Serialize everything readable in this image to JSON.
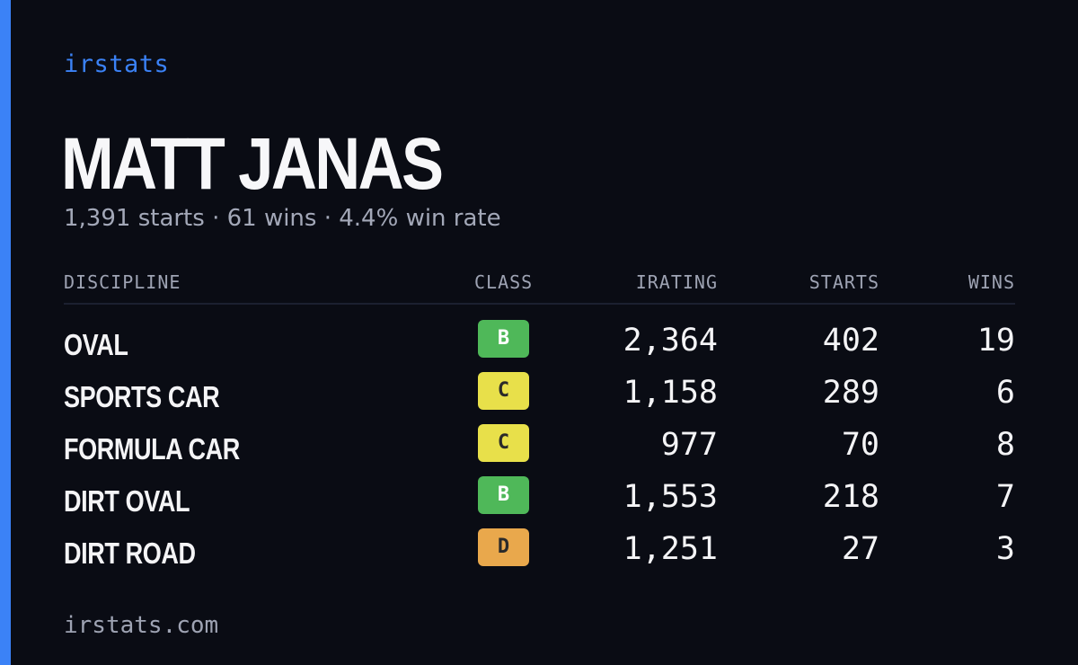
{
  "brand": "irstats",
  "driver": {
    "name": "MATT JANAS",
    "summary": "1,391 starts · 61 wins · 4.4% win rate"
  },
  "table": {
    "headers": {
      "discipline": "DISCIPLINE",
      "class": "CLASS",
      "irating": "IRATING",
      "starts": "STARTS",
      "wins": "WINS"
    },
    "rows": [
      {
        "discipline": "OVAL",
        "class": "B",
        "class_color": "#4fb859",
        "irating": "2,364",
        "starts": "402",
        "wins": "19"
      },
      {
        "discipline": "SPORTS CAR",
        "class": "C",
        "class_color": "#e8e04a",
        "irating": "1,158",
        "starts": "289",
        "wins": "6"
      },
      {
        "discipline": "FORMULA CAR",
        "class": "C",
        "class_color": "#e8e04a",
        "irating": "977",
        "starts": "70",
        "wins": "8"
      },
      {
        "discipline": "DIRT OVAL",
        "class": "B",
        "class_color": "#4fb859",
        "irating": "1,553",
        "starts": "218",
        "wins": "7"
      },
      {
        "discipline": "DIRT ROAD",
        "class": "D",
        "class_color": "#e9a84c",
        "irating": "1,251",
        "starts": "27",
        "wins": "3"
      }
    ]
  },
  "footer": "irstats.com",
  "colors": {
    "accent": "#3b82f6",
    "background": "#0a0c14"
  }
}
